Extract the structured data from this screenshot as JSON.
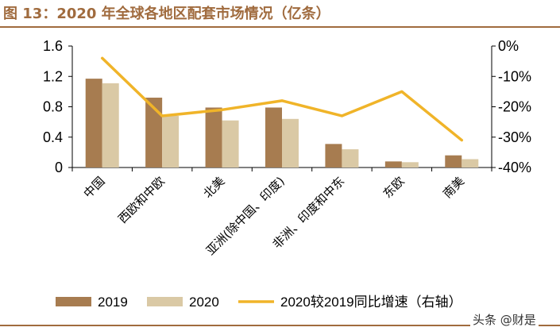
{
  "title": "图 13：2020 年全球各地区配套市场情况（亿条）",
  "watermark": "头条 @财是",
  "colors": {
    "bar2019": "#a77c50",
    "bar2020": "#dac9a5",
    "line": "#f0b429",
    "rule": "#a06b3e"
  },
  "chart_data": {
    "type": "bar",
    "categories": [
      "中国",
      "西欧和中欧",
      "北美",
      "亚洲(除中国、印度)",
      "非洲、印度和中东",
      "东欧",
      "南美"
    ],
    "series": [
      {
        "name": "2019",
        "type": "bar",
        "axis": "left",
        "values": [
          1.17,
          0.92,
          0.79,
          0.79,
          0.31,
          0.08,
          0.16
        ]
      },
      {
        "name": "2020",
        "type": "bar",
        "axis": "left",
        "values": [
          1.11,
          0.68,
          0.62,
          0.64,
          0.24,
          0.07,
          0.11
        ]
      },
      {
        "name": "2020较2019同比增速（右轴）",
        "type": "line",
        "axis": "right",
        "values": [
          -4,
          -23,
          -21,
          -18,
          -23,
          -15,
          -31
        ]
      }
    ],
    "y_left": {
      "ylim": [
        0,
        1.6
      ],
      "ticks": [
        "0",
        "0.4",
        "0.8",
        "1.2",
        "1.6"
      ],
      "tick_values": [
        0,
        0.4,
        0.8,
        1.2,
        1.6
      ]
    },
    "y_right": {
      "ylim": [
        -40,
        0
      ],
      "ticks": [
        "-40%",
        "-30%",
        "-20%",
        "-10%",
        "0%"
      ],
      "tick_values": [
        -40,
        -30,
        -20,
        -10,
        0
      ]
    },
    "grid": false,
    "legend_position": "bottom"
  }
}
